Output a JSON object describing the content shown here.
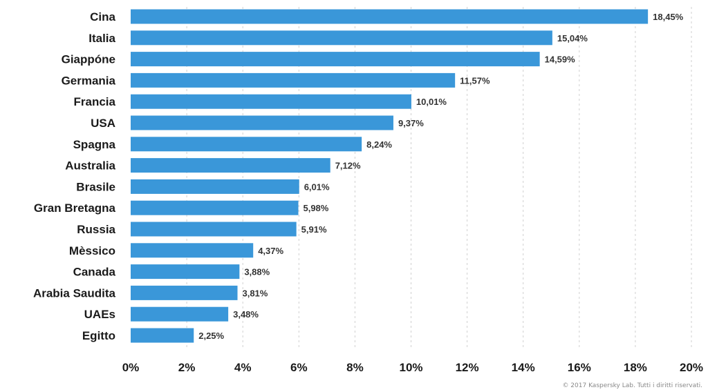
{
  "chart_data": {
    "type": "bar",
    "orientation": "horizontal",
    "categories": [
      "Cina",
      "Italia",
      "Giappóne",
      "Germania",
      "Francia",
      "USA",
      "Spagna",
      "Australia",
      "Brasile",
      "Gran Bretagna",
      "Russia",
      "Mèssico",
      "Canada",
      "Arabia Saudita",
      "UAEs",
      "Egitto"
    ],
    "values": [
      18.45,
      15.04,
      14.59,
      11.57,
      10.01,
      9.37,
      8.24,
      7.12,
      6.01,
      5.98,
      5.91,
      4.37,
      3.88,
      3.81,
      3.48,
      2.25
    ],
    "value_labels": [
      "18,45%",
      "15,04%",
      "14,59%",
      "11,57%",
      "10,01%",
      "9,37%",
      "8,24%",
      "7,12%",
      "6,01%",
      "5,98%",
      "5,91%",
      "4,37%",
      "3,88%",
      "3,81%",
      "3,48%",
      "2,25%"
    ],
    "xlim": [
      0,
      20
    ],
    "x_ticks": [
      0,
      2,
      4,
      6,
      8,
      10,
      12,
      14,
      16,
      18,
      20
    ],
    "x_tick_labels": [
      "0%",
      "2%",
      "4%",
      "6%",
      "8%",
      "10%",
      "12%",
      "14%",
      "16%",
      "18%",
      "20%"
    ],
    "grid": "vertical dashed",
    "bar_color": "#3a97d9"
  },
  "footer": {
    "copyright": "© 2017 Kaspersky Lab. Tutti i diritti riservati."
  }
}
